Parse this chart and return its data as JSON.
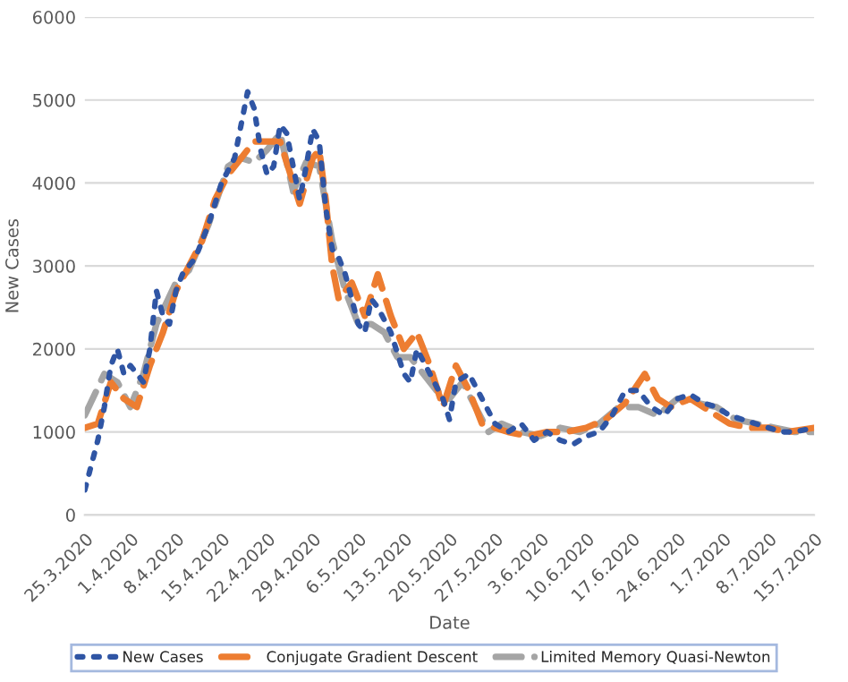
{
  "chart_data": {
    "type": "line",
    "xlabel": "Date",
    "ylabel": "New Cases",
    "xlim": [
      "2020-03-25",
      "2020-07-15"
    ],
    "xticks": [
      {
        "value": "2020-03-25",
        "label": "25.3.2020"
      },
      {
        "value": "2020-04-01",
        "label": "1.4.2020"
      },
      {
        "value": "2020-04-08",
        "label": "8.4.2020"
      },
      {
        "value": "2020-04-15",
        "label": "15.4.2020"
      },
      {
        "value": "2020-04-22",
        "label": "22.4.2020"
      },
      {
        "value": "2020-04-29",
        "label": "29.4.2020"
      },
      {
        "value": "2020-05-06",
        "label": "6.5.2020"
      },
      {
        "value": "2020-05-13",
        "label": "13.5.2020"
      },
      {
        "value": "2020-05-20",
        "label": "20.5.2020"
      },
      {
        "value": "2020-05-27",
        "label": "27.5.2020"
      },
      {
        "value": "2020-06-03",
        "label": "3.6.2020"
      },
      {
        "value": "2020-06-10",
        "label": "10.6.2020"
      },
      {
        "value": "2020-06-17",
        "label": "17.6.2020"
      },
      {
        "value": "2020-06-24",
        "label": "24.6.2020"
      },
      {
        "value": "2020-07-01",
        "label": "1.7.2020"
      },
      {
        "value": "2020-07-08",
        "label": "8.7.2020"
      },
      {
        "value": "2020-07-15",
        "label": "15.7.2020"
      }
    ],
    "ylim": [
      0,
      6000
    ],
    "yticks": [
      0,
      1000,
      2000,
      3000,
      4000,
      5000,
      6000
    ],
    "grid": "y",
    "legend": "bottom",
    "marker": "none",
    "series": [
      {
        "name": "New Cases",
        "color": "#2f55a4",
        "line_style": "dotted",
        "x": [
          "2020-03-25",
          "2020-03-27",
          "2020-03-28",
          "2020-03-29",
          "2020-03-30",
          "2020-03-31",
          "2020-04-01",
          "2020-04-02",
          "2020-04-03",
          "2020-04-04",
          "2020-04-05",
          "2020-04-06",
          "2020-04-07",
          "2020-04-08",
          "2020-04-09",
          "2020-04-11",
          "2020-04-13",
          "2020-04-15",
          "2020-04-17",
          "2020-04-18",
          "2020-04-19",
          "2020-04-20",
          "2020-04-21",
          "2020-04-22",
          "2020-04-23",
          "2020-04-24",
          "2020-04-25",
          "2020-04-26",
          "2020-04-27",
          "2020-04-28",
          "2020-04-29",
          "2020-04-30",
          "2020-05-01",
          "2020-05-02",
          "2020-05-03",
          "2020-05-04",
          "2020-05-06",
          "2020-05-07",
          "2020-05-08",
          "2020-05-09",
          "2020-05-11",
          "2020-05-13",
          "2020-05-14",
          "2020-05-15",
          "2020-05-17",
          "2020-05-19",
          "2020-05-20",
          "2020-05-21",
          "2020-05-23",
          "2020-05-25",
          "2020-05-27",
          "2020-05-29",
          "2020-05-31",
          "2020-06-02",
          "2020-06-04",
          "2020-06-06",
          "2020-06-08",
          "2020-06-10",
          "2020-06-12",
          "2020-06-14",
          "2020-06-16",
          "2020-06-18",
          "2020-06-20",
          "2020-06-22",
          "2020-06-24",
          "2020-06-26",
          "2020-06-28",
          "2020-06-30",
          "2020-07-02",
          "2020-07-04",
          "2020-07-06",
          "2020-07-08",
          "2020-07-10",
          "2020-07-12",
          "2020-07-15"
        ],
        "values": [
          300,
          900,
          1300,
          1800,
          2000,
          1700,
          1800,
          1700,
          1600,
          2000,
          2700,
          2400,
          2300,
          2700,
          2900,
          3100,
          3500,
          4000,
          4300,
          4700,
          5100,
          4900,
          4400,
          4100,
          4200,
          4700,
          4600,
          4200,
          3800,
          4200,
          4650,
          4500,
          3700,
          3200,
          3100,
          2900,
          2300,
          2200,
          2600,
          2500,
          2200,
          1700,
          1600,
          2000,
          1700,
          1400,
          1150,
          1600,
          1700,
          1400,
          1100,
          1000,
          1100,
          900,
          1000,
          900,
          850,
          950,
          1000,
          1200,
          1500,
          1500,
          1300,
          1200,
          1400,
          1450,
          1350,
          1300,
          1200,
          1150,
          1100,
          1050,
          1000,
          1000,
          1050
        ]
      },
      {
        "name": "Conjugate Gradient Descent",
        "color": "#ed7d31",
        "line_style": "dashed",
        "x": [
          "2020-03-25",
          "2020-03-27",
          "2020-03-29",
          "2020-03-31",
          "2020-04-02",
          "2020-04-04",
          "2020-04-06",
          "2020-04-08",
          "2020-04-10",
          "2020-04-12",
          "2020-04-14",
          "2020-04-16",
          "2020-04-18",
          "2020-04-20",
          "2020-04-22",
          "2020-04-24",
          "2020-04-26",
          "2020-04-27",
          "2020-04-29",
          "2020-04-30",
          "2020-05-01",
          "2020-05-02",
          "2020-05-03",
          "2020-05-05",
          "2020-05-07",
          "2020-05-09",
          "2020-05-11",
          "2020-05-13",
          "2020-05-15",
          "2020-05-17",
          "2020-05-19",
          "2020-05-21",
          "2020-05-23",
          "2020-05-25",
          "2020-05-27",
          "2020-05-29",
          "2020-06-01",
          "2020-06-04",
          "2020-06-07",
          "2020-06-10",
          "2020-06-13",
          "2020-06-16",
          "2020-06-19",
          "2020-06-21",
          "2020-06-23",
          "2020-06-26",
          "2020-06-29",
          "2020-07-02",
          "2020-07-05",
          "2020-07-08",
          "2020-07-11",
          "2020-07-15"
        ],
        "values": [
          1050,
          1100,
          1600,
          1400,
          1300,
          1800,
          2200,
          2700,
          3000,
          3300,
          3800,
          4100,
          4300,
          4500,
          4500,
          4500,
          4000,
          3750,
          4300,
          4400,
          3800,
          3000,
          2600,
          2800,
          2400,
          2900,
          2400,
          2000,
          2200,
          1800,
          1300,
          1800,
          1500,
          1100,
          1050,
          1000,
          950,
          1000,
          1000,
          1050,
          1150,
          1350,
          1700,
          1400,
          1300,
          1400,
          1250,
          1100,
          1050,
          1050,
          1000,
          1050
        ]
      },
      {
        "name": "Limited Memory Quasi-Newton",
        "color": "#a5a5a5",
        "line_style": "dashed",
        "x": [
          "2020-03-25",
          "2020-03-28",
          "2020-03-30",
          "2020-04-01",
          "2020-04-03",
          "2020-04-05",
          "2020-04-08",
          "2020-04-10",
          "2020-04-13",
          "2020-04-16",
          "2020-04-18",
          "2020-04-20",
          "2020-04-22",
          "2020-04-24",
          "2020-04-26",
          "2020-04-28",
          "2020-04-30",
          "2020-05-02",
          "2020-05-04",
          "2020-05-06",
          "2020-05-08",
          "2020-05-10",
          "2020-05-12",
          "2020-05-14",
          "2020-05-16",
          "2020-05-18",
          "2020-05-20",
          "2020-05-22",
          "2020-05-24",
          "2020-05-26",
          "2020-05-28",
          "2020-05-31",
          "2020-06-03",
          "2020-06-06",
          "2020-06-09",
          "2020-06-12",
          "2020-06-15",
          "2020-06-18",
          "2020-06-21",
          "2020-06-24",
          "2020-06-27",
          "2020-06-30",
          "2020-07-03",
          "2020-07-06",
          "2020-07-09",
          "2020-07-12",
          "2020-07-15"
        ],
        "values": [
          1200,
          1700,
          1600,
          1300,
          1700,
          2300,
          2800,
          2950,
          3500,
          4200,
          4300,
          4250,
          4400,
          4600,
          3900,
          4250,
          4200,
          3300,
          2700,
          2300,
          2300,
          2200,
          1900,
          1900,
          1700,
          1500,
          1400,
          1600,
          1300,
          1000,
          1100,
          1000,
          950,
          1050,
          1000,
          1100,
          1300,
          1300,
          1200,
          1400,
          1350,
          1300,
          1150,
          1100,
          1050,
          1000,
          1000
        ]
      }
    ]
  }
}
